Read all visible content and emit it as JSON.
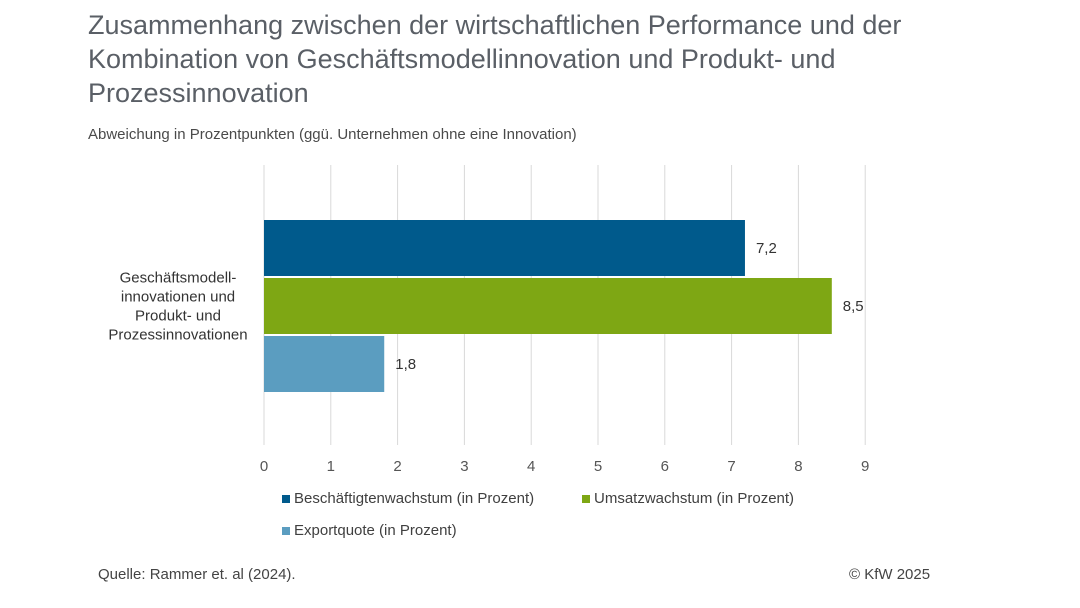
{
  "title": "Zusammenhang zwischen der wirtschaftlichen Performance und der Kombination von Geschäftsmodellinnovation und Produkt- und Prozessinnovation",
  "subtitle": "Abweichung in Prozentpunkten (ggü. Unternehmen ohne eine Innovation)",
  "chart_data": {
    "type": "bar",
    "orientation": "horizontal",
    "categories": [
      "Geschäftsmodell-innovationen und Produkt- und Prozessinnovationen"
    ],
    "category_lines": [
      "Geschäftsmodell-",
      "innovationen und",
      "Produkt- und",
      "Prozessinnovationen"
    ],
    "series": [
      {
        "name": "Beschäftigtenwachstum (in Prozent)",
        "values": [
          7.2
        ],
        "label": "7,2",
        "color": "#005a8c"
      },
      {
        "name": "Umsatzwachstum (in Prozent)",
        "values": [
          8.5
        ],
        "label": "8,5",
        "color": "#7ea714"
      },
      {
        "name": "Exportquote (in Prozent)",
        "values": [
          1.8
        ],
        "label": "1,8",
        "color": "#5b9dc0"
      }
    ],
    "xlim": [
      0,
      9
    ],
    "xticks": [
      "0",
      "1",
      "2",
      "3",
      "4",
      "5",
      "6",
      "7",
      "8",
      "9"
    ],
    "grid": true,
    "legend_position": "bottom"
  },
  "footer": {
    "source": "Quelle: Rammer et. al (2024).",
    "copyright": "© KfW 2025"
  }
}
